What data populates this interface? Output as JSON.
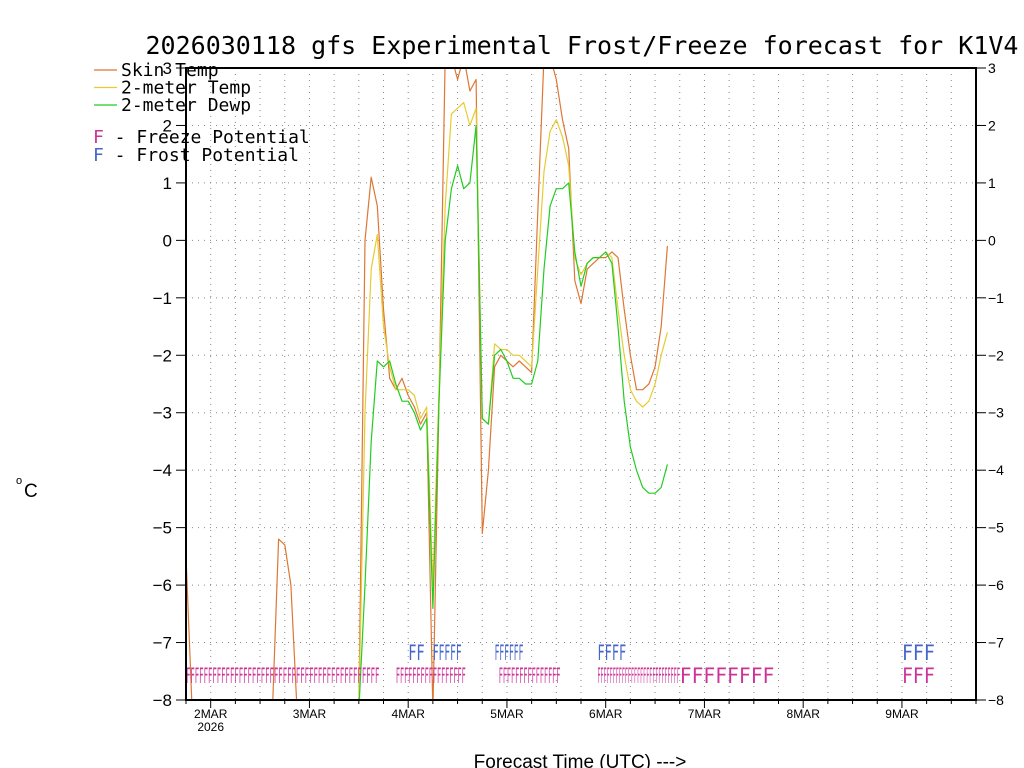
{
  "colors": {
    "skin": "#dd7733",
    "temp": "#e6cc33",
    "dewp": "#22cc22",
    "freeze": "#cc3399",
    "frost": "#4466cc",
    "grid": "#888888"
  },
  "chart_data": {
    "type": "line",
    "title": "2026030118 gfs Experimental Frost/Freeze forecast for K1V4",
    "ylabel": "°C",
    "ylabel_degree": "o",
    "ylabel_unit": "C",
    "xlabel": "Forecast Time (UTC) --->",
    "ylim": [
      -8,
      3
    ],
    "yticks": [
      3,
      2,
      1,
      0,
      -1,
      -2,
      -3,
      -4,
      -5,
      -6,
      -7,
      -8
    ],
    "xlim": [
      0,
      192
    ],
    "xticks": [
      {
        "hour": 6,
        "label": "2MAR",
        "sub": "2026"
      },
      {
        "hour": 30,
        "label": "3MAR"
      },
      {
        "hour": 54,
        "label": "4MAR"
      },
      {
        "hour": 78,
        "label": "5MAR"
      },
      {
        "hour": 102,
        "label": "6MAR"
      },
      {
        "hour": 126,
        "label": "7MAR"
      },
      {
        "hour": 150,
        "label": "8MAR"
      },
      {
        "hour": 174,
        "label": "9MAR"
      }
    ],
    "legend": [
      {
        "key": "skin",
        "label": "Skin Temp"
      },
      {
        "key": "temp",
        "label": "2-meter Temp"
      },
      {
        "key": "dewp",
        "label": "2-meter Dewp"
      }
    ],
    "potential_legend": [
      {
        "key": "freeze",
        "letter": "F",
        "label": " - Freeze Potential"
      },
      {
        "key": "frost",
        "letter": "F",
        "label": " - Frost Potential"
      }
    ],
    "series": [
      {
        "name": "Skin Temp",
        "key": "skin",
        "x": [
          0,
          1.5,
          21,
          22.5,
          24,
          25.5,
          27,
          42,
          43.5,
          45,
          46.5,
          48,
          49.5,
          51,
          52.5,
          54,
          55.5,
          57,
          58.5,
          60,
          61.5,
          63,
          64.5,
          66,
          67.5,
          69,
          70.5,
          72,
          73.5,
          75,
          76.5,
          78,
          79.5,
          81,
          82.5,
          84,
          85.5,
          87,
          88.5,
          90,
          91.5,
          93,
          94.5,
          96,
          97.5,
          99,
          100.5,
          102,
          103.5,
          105,
          106.5,
          108,
          109.5,
          111,
          112.5,
          114,
          115.5,
          117
        ],
        "y": [
          -5.5,
          -8.2,
          -8.2,
          -5.2,
          -5.3,
          -6.0,
          -8.2,
          -8.2,
          0.0,
          1.1,
          0.6,
          -1.2,
          -2.4,
          -2.6,
          -2.4,
          -2.7,
          -2.9,
          -3.2,
          -3.0,
          -8.2,
          -2.8,
          3.2,
          3.2,
          2.8,
          3.2,
          2.6,
          2.8,
          -5.1,
          -4.0,
          -2.2,
          -2.0,
          -2.1,
          -2.2,
          -2.1,
          -2.2,
          -2.3,
          0.5,
          3.2,
          3.2,
          2.8,
          2.1,
          1.6,
          -0.7,
          -1.1,
          -0.5,
          -0.4,
          -0.3,
          -0.3,
          -0.2,
          -0.3,
          -1.2,
          -2.0,
          -2.6,
          -2.6,
          -2.5,
          -2.2,
          -1.5,
          -0.1
        ]
      },
      {
        "name": "2-meter Temp",
        "key": "temp",
        "x": [
          42,
          43.5,
          45,
          46.5,
          48,
          49.5,
          51,
          52.5,
          54,
          55.5,
          57,
          58.5,
          60,
          61.5,
          63,
          64.5,
          66,
          67.5,
          69,
          70.5,
          72,
          73.5,
          75,
          76.5,
          78,
          79.5,
          81,
          82.5,
          84,
          85.5,
          87,
          88.5,
          90,
          91.5,
          93,
          94.5,
          96,
          97.5,
          99,
          100.5,
          102,
          103.5,
          105,
          106.5,
          108,
          109.5,
          111,
          112.5,
          114,
          115.5,
          117
        ],
        "y": [
          -8.2,
          -3.0,
          -0.5,
          0.1,
          -1.5,
          -2.2,
          -2.6,
          -2.6,
          -2.6,
          -2.7,
          -3.1,
          -2.9,
          -6.0,
          -2.6,
          0.6,
          2.2,
          2.3,
          2.4,
          2.0,
          2.3,
          -3.1,
          -3.2,
          -1.8,
          -1.9,
          -1.9,
          -2.0,
          -2.0,
          -2.1,
          -2.2,
          -0.5,
          1.2,
          1.9,
          2.1,
          1.8,
          1.3,
          -0.3,
          -0.6,
          -0.4,
          -0.3,
          -0.3,
          -0.2,
          -0.3,
          -1.2,
          -2.0,
          -2.6,
          -2.8,
          -2.9,
          -2.8,
          -2.5,
          -2.0,
          -1.6
        ]
      },
      {
        "name": "2-meter Dewp",
        "key": "dewp",
        "x": [
          42,
          43.5,
          45,
          46.5,
          48,
          49.5,
          51,
          52.5,
          54,
          55.5,
          57,
          58.5,
          60,
          61.5,
          63,
          64.5,
          66,
          67.5,
          69,
          70.5,
          72,
          73.5,
          75,
          76.5,
          78,
          79.5,
          81,
          82.5,
          84,
          85.5,
          87,
          88.5,
          90,
          91.5,
          93,
          94.5,
          96,
          97.5,
          99,
          100.5,
          102,
          103.5,
          105,
          106.5,
          108,
          109.5,
          111,
          112.5,
          114,
          115.5,
          117
        ],
        "y": [
          -8.2,
          -6.0,
          -3.5,
          -2.1,
          -2.2,
          -2.1,
          -2.5,
          -2.8,
          -2.8,
          -3.0,
          -3.3,
          -3.1,
          -6.4,
          -2.8,
          0.0,
          0.9,
          1.3,
          0.9,
          1.0,
          2.0,
          -3.1,
          -3.2,
          -2.0,
          -1.9,
          -2.1,
          -2.4,
          -2.4,
          -2.5,
          -2.5,
          -2.1,
          -0.5,
          0.6,
          0.9,
          0.9,
          1.0,
          -0.2,
          -0.8,
          -0.4,
          -0.3,
          -0.3,
          -0.2,
          -0.4,
          -1.5,
          -2.8,
          -3.6,
          -4.0,
          -4.3,
          -4.4,
          -4.4,
          -4.3,
          -3.9
        ]
      }
    ],
    "freeze_marks": [
      {
        "start": 0,
        "end": 47,
        "text": "FFFFFFFFFFFFFFFFFFFFFFFFFFFFFFFFFFFFFFFFFFFF"
      },
      {
        "start": 51,
        "end": 68,
        "text": "FFFFFFFFFFFFFFFFF"
      },
      {
        "start": 76,
        "end": 91,
        "text": "FFFFFFFFFFFFFFF"
      },
      {
        "start": 100,
        "end": 120,
        "text": "FFFFFFFFFFFFFFFFFFFFFFFFFFF"
      },
      {
        "start": 120,
        "end": 143,
        "text": "FFFFFFFF"
      },
      {
        "start": 174,
        "end": 182,
        "text": "FFF"
      }
    ],
    "frost_marks": [
      {
        "start": 54,
        "end": 58,
        "text": "FF"
      },
      {
        "start": 60,
        "end": 67,
        "text": "FFFFF"
      },
      {
        "start": 75,
        "end": 82,
        "text": "FFFFFF"
      },
      {
        "start": 100,
        "end": 107,
        "text": "FFFF"
      },
      {
        "start": 174,
        "end": 182,
        "text": "FFF"
      }
    ]
  }
}
